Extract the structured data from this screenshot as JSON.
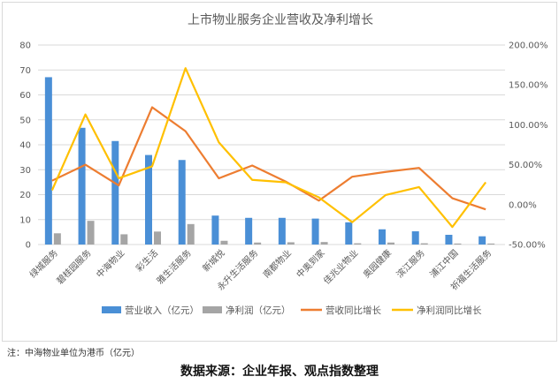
{
  "chart_data": {
    "type": "bar",
    "title": "上市物业服务企业营收及净利增长",
    "categories": [
      "绿城服务",
      "碧桂园服务",
      "中海物业",
      "彩生活",
      "雅生活服务",
      "新城悦",
      "永升生活服务",
      "南都物业",
      "中奥到家",
      "佳兆业物业",
      "奥园健康",
      "滨江服务",
      "浦江中国",
      "祈福生活服务"
    ],
    "series": [
      {
        "name": "营业收入（亿元）",
        "kind": "bar",
        "axis": "left",
        "color": "#4a8fd6",
        "values": [
          67.1,
          46.8,
          41.5,
          35.9,
          33.9,
          11.6,
          10.7,
          10.7,
          10.4,
          8.9,
          6.1,
          5.3,
          3.9,
          3.3
        ]
      },
      {
        "name": "净利润（亿元）",
        "kind": "bar",
        "axis": "left",
        "color": "#a5a5a5",
        "values": [
          4.5,
          9.5,
          4.1,
          5.2,
          8.2,
          1.5,
          0.8,
          0.9,
          1.0,
          0.5,
          0.8,
          0.5,
          0.4,
          0.4
        ]
      },
      {
        "name": "营收同比增长",
        "kind": "line",
        "axis": "right",
        "color": "#ed7d31",
        "values": [
          30.0,
          50.0,
          24.0,
          122.0,
          92.0,
          33.0,
          49.0,
          29.0,
          5.0,
          35.0,
          41.0,
          46.0,
          8.0,
          -6.0
        ]
      },
      {
        "name": "净利润同比增长",
        "kind": "line",
        "axis": "right",
        "color": "#ffc000",
        "values": [
          18.0,
          113.0,
          33.0,
          48.0,
          171.0,
          78.0,
          31.0,
          28.0,
          9.0,
          -22.0,
          12.0,
          22.0,
          -28.0,
          28.0
        ]
      }
    ],
    "y_left": {
      "min": 0,
      "max": 80,
      "ticks": [
        0,
        10,
        20,
        30,
        40,
        50,
        60,
        70,
        80
      ],
      "tick_labels": [
        "0",
        "10",
        "20",
        "30",
        "40",
        "50",
        "60",
        "70",
        "80"
      ]
    },
    "y_right": {
      "min": -50,
      "max": 200,
      "ticks": [
        -50,
        0,
        50,
        100,
        150,
        200
      ],
      "tick_labels": [
        "-50.00%",
        "0.00%",
        "50.00%",
        "100.00%",
        "150.00%",
        "200.00%"
      ]
    },
    "grid": true,
    "legend_position": "bottom"
  },
  "note": "注：中海物业单位为港币（亿元）",
  "source": "数据来源：企业年报、观点指数整理"
}
